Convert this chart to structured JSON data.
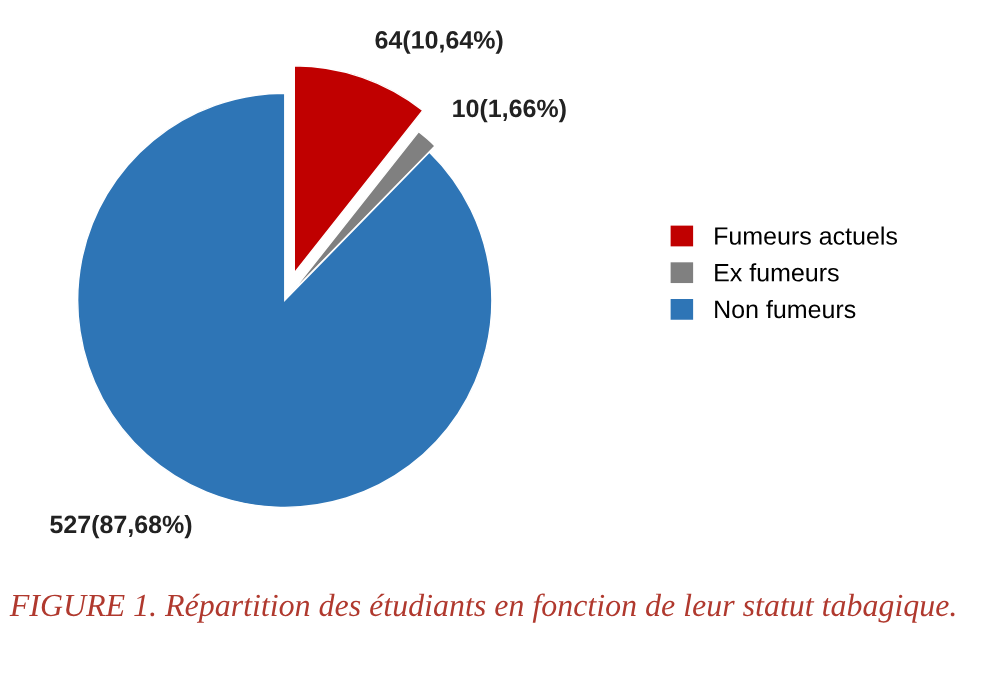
{
  "chart_data": {
    "type": "pie",
    "categories": [
      "Fumeurs actuels",
      "Ex fumeurs",
      "Non fumeurs"
    ],
    "values": [
      64,
      10,
      527
    ],
    "colors": [
      "#c00000",
      "#808080",
      "#2e75b6"
    ],
    "value_labels": [
      "64(10,64%)",
      "10(1,66%)",
      "527(87,68%)"
    ],
    "legend": "right",
    "annotations": [
      "FIGURE 1. Répartition des étudiants en fonction de leur statut tabagique."
    ]
  }
}
